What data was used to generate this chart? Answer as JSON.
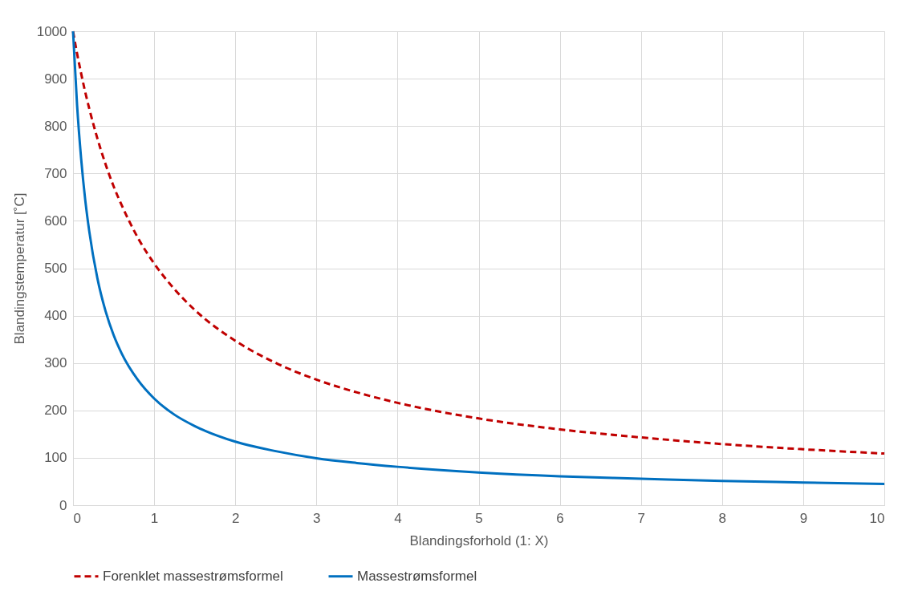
{
  "chart_data": {
    "type": "line",
    "xlabel": "Blandingsforhold (1: X)",
    "ylabel": "Blandingstemperatur [˚C]",
    "x": [
      0,
      0.05,
      0.1,
      0.15,
      0.2,
      0.3,
      0.4,
      0.5,
      0.6,
      0.8,
      1,
      1.25,
      1.5,
      2,
      2.5,
      3,
      3.5,
      4,
      5,
      6,
      7,
      8,
      9,
      10
    ],
    "series": [
      {
        "name": "Forenklet massestrømsformel",
        "color": "#c00000",
        "line_style": "dashed",
        "values": [
          1000,
          953,
          911,
          872,
          837,
          774,
          720,
          673,
          633,
          564,
          510,
          456,
          412,
          347,
          300,
          265,
          238,
          216,
          183,
          160,
          143,
          129,
          118,
          109
        ]
      },
      {
        "name": "Massestrømsformel",
        "color": "#0070c0",
        "line_style": "solid",
        "values": [
          1000,
          844,
          731,
          645,
          578,
          479,
          410,
          359,
          320,
          264,
          225,
          191,
          167,
          134,
          114,
          99,
          89,
          81,
          69,
          61,
          56,
          51,
          48,
          45
        ]
      }
    ],
    "xlim": [
      0,
      10
    ],
    "xticks": [
      0,
      1,
      2,
      3,
      4,
      5,
      6,
      7,
      8,
      9,
      10
    ],
    "ylim": [
      0,
      1000
    ],
    "yticks": [
      0,
      100,
      200,
      300,
      400,
      500,
      600,
      700,
      800,
      900,
      1000
    ],
    "grid": true,
    "legend": "bottom",
    "marker": "none"
  }
}
